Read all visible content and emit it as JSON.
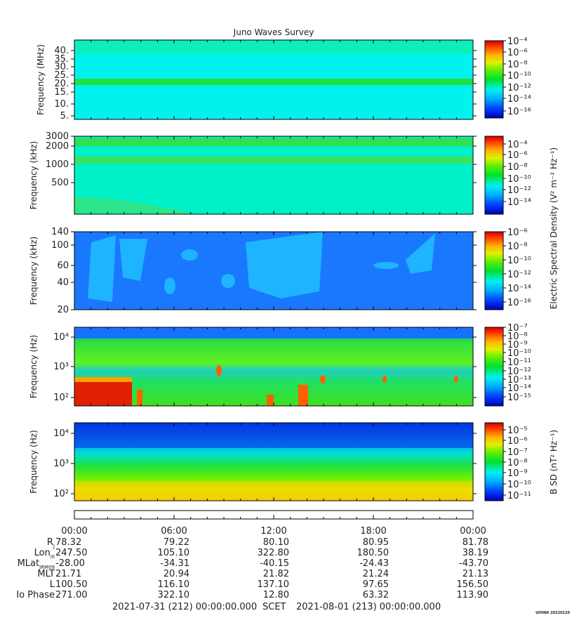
{
  "title": "Juno Waves Survey",
  "footer": {
    "start": "2021-07-31 (212) 00:00:00.000",
    "mid": "SCET",
    "end": "2021-08-01 (213) 00:00:00.000",
    "credit": "UIOWA 20220120"
  },
  "colorbar_titles": {
    "electric": "Electric Spectral Density (V² m⁻² Hz⁻¹)",
    "magnetic": "B SD (nT² Hz⁻¹)"
  },
  "chart_data": [
    {
      "type": "heatmap",
      "ylabel": "Frequency (MHz)",
      "yscale": "linear",
      "yticks": [
        "5.",
        "10.",
        "15.",
        "20.",
        "25.",
        "30.",
        "35.",
        "40."
      ],
      "ylim": [
        3,
        41
      ],
      "colorbar": {
        "ticks": [
          "10⁻⁴",
          "10⁻⁶",
          "10⁻⁸",
          "10⁻¹⁰",
          "10⁻¹²",
          "10⁻¹⁴",
          "10⁻¹⁶"
        ],
        "range_exp": [
          -17,
          -4
        ]
      },
      "features": [
        "band near 21 MHz"
      ]
    },
    {
      "type": "heatmap",
      "ylabel": "Frequency (kHz)",
      "yscale": "log",
      "yticks": [
        "3000",
        "2000",
        "1000",
        "500"
      ],
      "ylim": [
        150,
        3000
      ],
      "colorbar": {
        "ticks": [
          "10⁻⁴",
          "10⁻⁶",
          "10⁻⁸",
          "10⁻¹⁰",
          "10⁻¹²",
          "10⁻¹⁴"
        ],
        "range_exp": [
          -15,
          -3
        ]
      },
      "features": [
        "bands near 2400 and 1100 kHz"
      ]
    },
    {
      "type": "heatmap",
      "ylabel": "Frequency (kHz)",
      "yscale": "log",
      "yticks": [
        "140",
        "100",
        "60",
        "40",
        "20"
      ],
      "ylim": [
        20,
        140
      ],
      "colorbar": {
        "ticks": [
          "10⁻⁶",
          "10⁻⁸",
          "10⁻¹⁰",
          "10⁻¹²",
          "10⁻¹⁴",
          "10⁻¹⁶"
        ],
        "range_exp": [
          -16,
          -6
        ]
      },
      "features": [
        "bursts at 01:00-04:00, 06:00, 09:00-14:00, 20:00-21:00"
      ]
    },
    {
      "type": "heatmap",
      "ylabel": "Frequency (Hz)",
      "yscale": "log",
      "yticks": [
        "10⁴",
        "10³",
        "10²"
      ],
      "ylim": [
        55,
        20000
      ],
      "colorbar": {
        "ticks": [
          "10⁻⁷",
          "10⁻⁸",
          "10⁻⁹",
          "10⁻¹⁰",
          "10⁻¹¹",
          "10⁻¹²",
          "10⁻¹³",
          "10⁻¹⁴",
          "10⁻¹⁵"
        ],
        "range_exp": [
          -15,
          -7
        ]
      },
      "features": [
        "strong emission below 300 Hz before 03:30"
      ]
    },
    {
      "type": "heatmap",
      "ylabel": "Frequency (Hz)",
      "yscale": "log",
      "yticks": [
        "10⁴",
        "10³",
        "10²"
      ],
      "ylim": [
        55,
        20000
      ],
      "colorbar": {
        "ticks": [
          "10⁻⁵",
          "10⁻⁶",
          "10⁻⁷",
          "10⁻⁸",
          "10⁻⁹",
          "10⁻¹⁰",
          "10⁻¹¹"
        ],
        "range_exp": [
          -11,
          -4
        ]
      },
      "features": [
        "magnetic spectral density decreasing with frequency"
      ]
    }
  ],
  "time_axis": {
    "ticks": [
      "00:00",
      "06:00",
      "12:00",
      "18:00",
      "00:00"
    ],
    "range_hours": [
      0,
      24
    ]
  },
  "ephemeris": {
    "labels": [
      "R",
      "Lon",
      "MLat",
      "MLT",
      "L",
      "Io Phase"
    ],
    "label_subscripts": [
      "J",
      "III",
      "JRM09",
      "",
      "",
      ""
    ],
    "rows": [
      [
        "78.32",
        "79.22",
        "80.10",
        "80.95",
        "81.78"
      ],
      [
        "247.50",
        "105.10",
        "322.80",
        "180.50",
        "38.19"
      ],
      [
        "-28.00",
        "-34.31",
        "-40.15",
        "-24.43",
        "-43.70"
      ],
      [
        "21.71",
        "20.94",
        "21.82",
        "21.24",
        "21.13"
      ],
      [
        "100.50",
        "116.10",
        "137.10",
        "97.65",
        "156.50"
      ],
      [
        "271.00",
        "322.10",
        "12.80",
        "63.32",
        "113.90"
      ]
    ]
  }
}
